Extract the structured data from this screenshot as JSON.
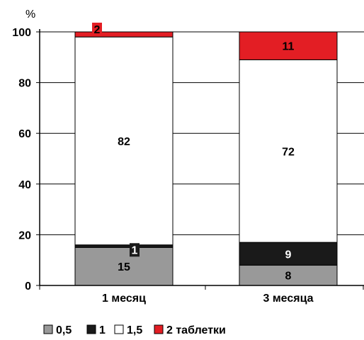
{
  "chart_data": {
    "type": "bar",
    "stacked": true,
    "ylabel": "%",
    "ylim": [
      0,
      100
    ],
    "yticks": [
      "0",
      "20",
      "40",
      "60",
      "80",
      "100"
    ],
    "grid": true,
    "legend_position": "bottom",
    "categories": [
      "1 месяц",
      "3 месяца"
    ],
    "series": [
      {
        "name": "0,5",
        "values": [
          15,
          8
        ],
        "color": "#999999",
        "text_color": "#000000"
      },
      {
        "name": "1",
        "values": [
          1,
          9
        ],
        "color": "#1a1a1a",
        "text_color": "#ffffff"
      },
      {
        "name": "1,5",
        "values": [
          82,
          72
        ],
        "color": "#ffffff",
        "text_color": "#000000"
      },
      {
        "name": "2 таблетки",
        "values": [
          2,
          11
        ],
        "color": "#e31e24",
        "text_color": "#000000"
      }
    ]
  }
}
